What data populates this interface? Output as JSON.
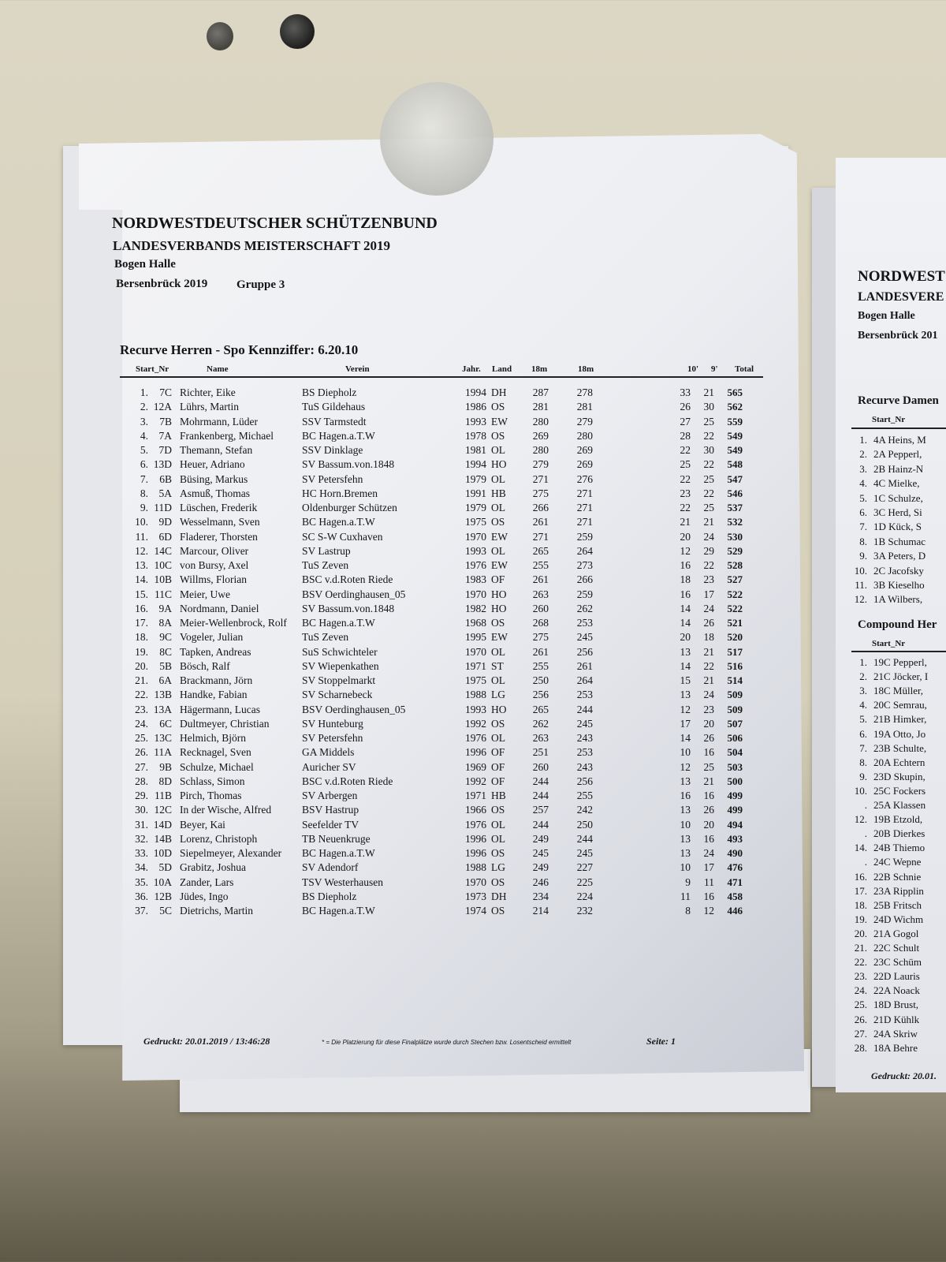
{
  "document": {
    "org": "NORDWESTDEUTSCHER SCHÜTZENBUND",
    "event": "LANDESVERBANDS MEISTERSCHAFT 2019",
    "discipline": "Bogen Halle",
    "location": "Bersenbrück 2019",
    "group": "Gruppe 3",
    "section_title": "Recurve Herren - Spo Kennziffer: 6.20.10",
    "columns": [
      "Start_Nr",
      "Name",
      "Verein",
      "Jahr.",
      "Land",
      "18m",
      "18m",
      "10'",
      "9'",
      "Total"
    ],
    "rows": [
      [
        "1.",
        "7C",
        "Richter, Eike",
        "BS Diepholz",
        "1994",
        "DH",
        "287",
        "278",
        "33",
        "21",
        "565"
      ],
      [
        "2.",
        "12A",
        "Lührs, Martin",
        "TuS Gildehaus",
        "1986",
        "OS",
        "281",
        "281",
        "26",
        "30",
        "562"
      ],
      [
        "3.",
        "7B",
        "Mohrmann, Lüder",
        "SSV Tarmstedt",
        "1993",
        "EW",
        "280",
        "279",
        "27",
        "25",
        "559"
      ],
      [
        "4.",
        "7A",
        "Frankenberg, Michael",
        "BC Hagen.a.T.W",
        "1978",
        "OS",
        "269",
        "280",
        "28",
        "22",
        "549"
      ],
      [
        "5.",
        "7D",
        "Themann, Stefan",
        "SSV Dinklage",
        "1981",
        "OL",
        "280",
        "269",
        "22",
        "30",
        "549"
      ],
      [
        "6.",
        "13D",
        "Heuer, Adriano",
        "SV Bassum.von.1848",
        "1994",
        "HO",
        "279",
        "269",
        "25",
        "22",
        "548"
      ],
      [
        "7.",
        "6B",
        "Büsing, Markus",
        "SV Petersfehn",
        "1979",
        "OL",
        "271",
        "276",
        "22",
        "25",
        "547"
      ],
      [
        "8.",
        "5A",
        "Asmuß, Thomas",
        "HC Horn.Bremen",
        "1991",
        "HB",
        "275",
        "271",
        "23",
        "22",
        "546"
      ],
      [
        "9.",
        "11D",
        "Lüschen, Frederik",
        "Oldenburger Schützen",
        "1979",
        "OL",
        "266",
        "271",
        "22",
        "25",
        "537"
      ],
      [
        "10.",
        "9D",
        "Wesselmann, Sven",
        "BC Hagen.a.T.W",
        "1975",
        "OS",
        "261",
        "271",
        "21",
        "21",
        "532"
      ],
      [
        "11.",
        "6D",
        "Fladerer, Thorsten",
        "SC S-W Cuxhaven",
        "1970",
        "EW",
        "271",
        "259",
        "20",
        "24",
        "530"
      ],
      [
        "12.",
        "14C",
        "Marcour, Oliver",
        "SV Lastrup",
        "1993",
        "OL",
        "265",
        "264",
        "12",
        "29",
        "529"
      ],
      [
        "13.",
        "10C",
        "von Bursy, Axel",
        "TuS Zeven",
        "1976",
        "EW",
        "255",
        "273",
        "16",
        "22",
        "528"
      ],
      [
        "14.",
        "10B",
        "Willms, Florian",
        "BSC v.d.Roten Riede",
        "1983",
        "OF",
        "261",
        "266",
        "18",
        "23",
        "527"
      ],
      [
        "15.",
        "11C",
        "Meier, Uwe",
        "BSV Oerdinghausen_05",
        "1970",
        "HO",
        "263",
        "259",
        "16",
        "17",
        "522"
      ],
      [
        "16.",
        "9A",
        "Nordmann, Daniel",
        "SV Bassum.von.1848",
        "1982",
        "HO",
        "260",
        "262",
        "14",
        "24",
        "522"
      ],
      [
        "17.",
        "8A",
        "Meier-Wellenbrock, Rolf",
        "BC Hagen.a.T.W",
        "1968",
        "OS",
        "268",
        "253",
        "14",
        "26",
        "521"
      ],
      [
        "18.",
        "9C",
        "Vogeler, Julian",
        "TuS Zeven",
        "1995",
        "EW",
        "275",
        "245",
        "20",
        "18",
        "520"
      ],
      [
        "19.",
        "8C",
        "Tapken, Andreas",
        "SuS Schwichteler",
        "1970",
        "OL",
        "261",
        "256",
        "13",
        "21",
        "517"
      ],
      [
        "20.",
        "5B",
        "Bösch, Ralf",
        "SV Wiepenkathen",
        "1971",
        "ST",
        "255",
        "261",
        "14",
        "22",
        "516"
      ],
      [
        "21.",
        "6A",
        "Brackmann, Jörn",
        "SV Stoppelmarkt",
        "1975",
        "OL",
        "250",
        "264",
        "15",
        "21",
        "514"
      ],
      [
        "22.",
        "13B",
        "Handke, Fabian",
        "SV Scharnebeck",
        "1988",
        "LG",
        "256",
        "253",
        "13",
        "24",
        "509"
      ],
      [
        "23.",
        "13A",
        "Hägermann, Lucas",
        "BSV Oerdinghausen_05",
        "1993",
        "HO",
        "265",
        "244",
        "12",
        "23",
        "509"
      ],
      [
        "24.",
        "6C",
        "Dultmeyer, Christian",
        "SV Hunteburg",
        "1992",
        "OS",
        "262",
        "245",
        "17",
        "20",
        "507"
      ],
      [
        "25.",
        "13C",
        "Helmich, Björn",
        "SV Petersfehn",
        "1976",
        "OL",
        "263",
        "243",
        "14",
        "26",
        "506"
      ],
      [
        "26.",
        "11A",
        "Recknagel, Sven",
        "GA Middels",
        "1996",
        "OF",
        "251",
        "253",
        "10",
        "16",
        "504"
      ],
      [
        "27.",
        "9B",
        "Schulze, Michael",
        "Auricher SV",
        "1969",
        "OF",
        "260",
        "243",
        "12",
        "25",
        "503"
      ],
      [
        "28.",
        "8D",
        "Schlass, Simon",
        "BSC v.d.Roten Riede",
        "1992",
        "OF",
        "244",
        "256",
        "13",
        "21",
        "500"
      ],
      [
        "29.",
        "11B",
        "Pirch, Thomas",
        "SV Arbergen",
        "1971",
        "HB",
        "244",
        "255",
        "16",
        "16",
        "499"
      ],
      [
        "30.",
        "12C",
        "In der Wische, Alfred",
        "BSV Hastrup",
        "1966",
        "OS",
        "257",
        "242",
        "13",
        "26",
        "499"
      ],
      [
        "31.",
        "14D",
        "Beyer, Kai",
        "Seefelder TV",
        "1976",
        "OL",
        "244",
        "250",
        "10",
        "20",
        "494"
      ],
      [
        "32.",
        "14B",
        "Lorenz, Christoph",
        "TB Neuenkruge",
        "1996",
        "OL",
        "249",
        "244",
        "13",
        "16",
        "493"
      ],
      [
        "33.",
        "10D",
        "Siepelmeyer, Alexander",
        "BC Hagen.a.T.W",
        "1996",
        "OS",
        "245",
        "245",
        "13",
        "24",
        "490"
      ],
      [
        "34.",
        "5D",
        "Grabitz, Joshua",
        "SV Adendorf",
        "1988",
        "LG",
        "249",
        "227",
        "10",
        "17",
        "476"
      ],
      [
        "35.",
        "10A",
        "Zander, Lars",
        "TSV Westerhausen",
        "1970",
        "OS",
        "246",
        "225",
        "9",
        "11",
        "471"
      ],
      [
        "36.",
        "12B",
        "Jüdes, Ingo",
        "BS Diepholz",
        "1973",
        "DH",
        "234",
        "224",
        "11",
        "16",
        "458"
      ],
      [
        "37.",
        "5C",
        "Dietrichs, Martin",
        "BC Hagen.a.T.W",
        "1974",
        "OS",
        "214",
        "232",
        "8",
        "12",
        "446"
      ]
    ],
    "footer": {
      "printed": "Gedruckt: 20.01.2019 / 13:46:28",
      "note": "* = Die Platzierung für diese Finalplätze wurde durch Stechen bzw. Losentscheid ermittelt",
      "page": "Seite: 1"
    }
  },
  "right_sheet": {
    "org": "NORDWEST",
    "event": "LANDESVERE",
    "discipline": "Bogen Halle",
    "location": "Bersenbrück 201",
    "section1_title": "Recurve Damen",
    "section1_header": "Start_Nr",
    "section1_rows": [
      [
        "1.",
        "4A Heins, M"
      ],
      [
        "2.",
        "2A Pepperl,"
      ],
      [
        "3.",
        "2B Hainz-N"
      ],
      [
        "4.",
        "4C Mielke,"
      ],
      [
        "5.",
        "1C Schulze,"
      ],
      [
        "6.",
        "3C Herd, Si"
      ],
      [
        "7.",
        "1D Kück, S"
      ],
      [
        "8.",
        "1B Schumac"
      ],
      [
        "9.",
        "3A Peters, D"
      ],
      [
        "10.",
        "2C Jacofsky"
      ],
      [
        "11.",
        "3B Kieselho"
      ],
      [
        "12.",
        "1A Wilbers,"
      ]
    ],
    "section2_title": "Compound Her",
    "section2_header": "Start_Nr",
    "section2_rows": [
      [
        "1.",
        "19C Pepperl,"
      ],
      [
        "2.",
        "21C Jöcker, I"
      ],
      [
        "3.",
        "18C Müller,"
      ],
      [
        "4.",
        "20C Semrau,"
      ],
      [
        "5.",
        "21B Himker,"
      ],
      [
        "6.",
        "19A Otto, Jo"
      ],
      [
        "7.",
        "23B Schulte,"
      ],
      [
        "8.",
        "20A Echtern"
      ],
      [
        "9.",
        "23D Skupin,"
      ],
      [
        "10.",
        "25C Fockers"
      ],
      [
        ".",
        "25A Klassen"
      ],
      [
        "12.",
        "19B Etzold,"
      ],
      [
        ".",
        "20B Dierkes"
      ],
      [
        "14.",
        "24B Thiemo"
      ],
      [
        ".",
        "24C Wepne"
      ],
      [
        "16.",
        "22B Schnie"
      ],
      [
        "17.",
        "23A Ripplin"
      ],
      [
        "18.",
        "25B Fritsch"
      ],
      [
        "19.",
        "24D Wichm"
      ],
      [
        "20.",
        "21A Gogol"
      ],
      [
        "21.",
        "22C Schult"
      ],
      [
        "22.",
        "23C Schüm"
      ],
      [
        "23.",
        "22D Lauris"
      ],
      [
        "24.",
        "22A Noack"
      ],
      [
        "25.",
        "18D Brust,"
      ],
      [
        "26.",
        "21D Kühlk"
      ],
      [
        "27.",
        "24A Skriw"
      ],
      [
        "28.",
        "18A Behre"
      ]
    ],
    "footer": "Gedruckt: 20.01."
  },
  "colors": {
    "wall": "#d8d2bd",
    "paper": "#eef0f3",
    "text": "#151515"
  }
}
